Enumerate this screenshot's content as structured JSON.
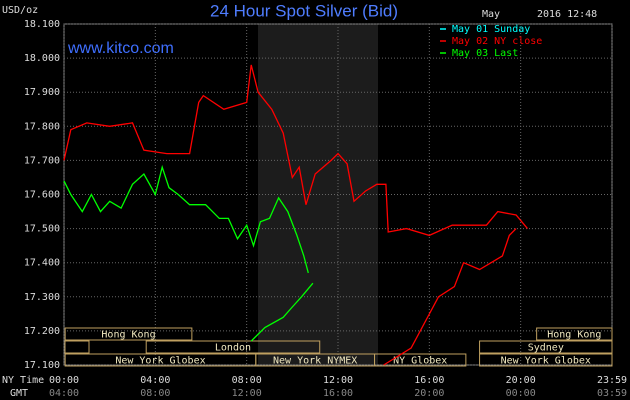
{
  "chart_data": {
    "type": "line",
    "title": "24 Hour Spot Silver (Bid)",
    "y_unit": "USD/oz",
    "watermark": "www.kitco.com",
    "month": "May",
    "timestamp": "2016 12:48",
    "xlim": [
      0,
      24
    ],
    "ylim": [
      17.1,
      18.1
    ],
    "yticks": [
      {
        "value": 17.1,
        "label": "17.100"
      },
      {
        "value": 17.2,
        "label": "17.200"
      },
      {
        "value": 17.3,
        "label": "17.300"
      },
      {
        "value": 17.4,
        "label": "17.400"
      },
      {
        "value": 17.5,
        "label": "17.500"
      },
      {
        "value": 17.6,
        "label": "17.600"
      },
      {
        "value": 17.7,
        "label": "17.700"
      },
      {
        "value": 17.8,
        "label": "17.800"
      },
      {
        "value": 17.9,
        "label": "17.900"
      },
      {
        "value": 18.0,
        "label": "18.000"
      },
      {
        "value": 18.1,
        "label": "18.100"
      }
    ],
    "xticks": [
      {
        "value": 0,
        "label": "00:00"
      },
      {
        "value": 4,
        "label": "04:00"
      },
      {
        "value": 8,
        "label": "08:00"
      },
      {
        "value": 12,
        "label": "12:00"
      },
      {
        "value": 16,
        "label": "16:00"
      },
      {
        "value": 20,
        "label": "20:00"
      },
      {
        "value": 24,
        "label": "23:59"
      }
    ],
    "x_row_label": "NY Time",
    "gmt_row_label": "GMT",
    "gmt_labels": [
      "04:00",
      "08:00",
      "12:00",
      "16:00",
      "20:00",
      "00:00",
      "03:59"
    ],
    "grid": true,
    "series": [
      {
        "name": "May 01 Sunday",
        "color": "#00ffff",
        "x": [],
        "values": []
      },
      {
        "name": "May 02 NY close",
        "color": "#ff0000",
        "x": [
          0,
          0.3,
          1.0,
          2.0,
          3.0,
          3.5,
          4.5,
          5.5,
          5.9,
          6.1,
          7.0,
          8.0,
          8.2,
          8.5,
          9.1,
          9.6,
          10.0,
          10.3,
          10.6,
          11.0,
          11.7,
          12.0,
          12.4,
          12.7,
          13.2,
          13.7,
          14.1,
          14.2,
          15.0,
          16.0,
          17.0,
          18.5,
          19.0,
          19.8,
          20.3,
          null,
          14.0,
          15.2,
          16.4,
          17.1,
          17.5,
          18.2,
          19.2,
          19.5,
          19.8
        ],
        "values": [
          17.7,
          17.79,
          17.81,
          17.8,
          17.81,
          17.73,
          17.72,
          17.72,
          17.87,
          17.89,
          17.85,
          17.87,
          17.98,
          17.9,
          17.85,
          17.78,
          17.65,
          17.68,
          17.57,
          17.66,
          17.7,
          17.72,
          17.69,
          17.58,
          17.61,
          17.63,
          17.63,
          17.49,
          17.5,
          17.48,
          17.51,
          17.51,
          17.55,
          17.54,
          17.5,
          null,
          17.1,
          17.15,
          17.3,
          17.33,
          17.4,
          17.38,
          17.42,
          17.48,
          17.5
        ]
      },
      {
        "name": "May 03 Last",
        "color": "#00ff00",
        "x": [
          0,
          0.3,
          0.8,
          1.2,
          1.6,
          2.0,
          2.5,
          3.0,
          3.5,
          4.0,
          4.3,
          4.6,
          5.0,
          5.5,
          6.2,
          6.8,
          7.2,
          7.6,
          8.0,
          8.3,
          8.6,
          9.0,
          9.4,
          9.8,
          10.2,
          10.5,
          10.7,
          null,
          8.2,
          8.8,
          9.6,
          10.0,
          10.4,
          10.9
        ],
        "values": [
          17.64,
          17.6,
          17.55,
          17.6,
          17.55,
          17.58,
          17.56,
          17.63,
          17.66,
          17.6,
          17.68,
          17.62,
          17.6,
          17.57,
          17.57,
          17.53,
          17.53,
          17.47,
          17.51,
          17.45,
          17.52,
          17.53,
          17.59,
          17.55,
          17.48,
          17.42,
          17.37,
          null,
          17.17,
          17.21,
          17.24,
          17.27,
          17.3,
          17.34
        ]
      }
    ],
    "session_rows": [
      [
        {
          "label": "Hong Kong",
          "start": 0.05,
          "end": 5.6
        },
        {
          "label": "Hong Kong",
          "start": 20.7,
          "end": 24
        }
      ],
      [
        {
          "label": "London",
          "start": 3.6,
          "end": 11.2
        },
        {
          "label": "Sydney",
          "start": 18.2,
          "end": 24
        }
      ],
      [
        {
          "label": "New York Globex",
          "start": 0.05,
          "end": 8.4
        },
        {
          "label": "New York NYMEX",
          "start": 8.4,
          "end": 13.6
        },
        {
          "label": "NY Globex",
          "start": 13.6,
          "end": 17.6
        },
        {
          "label": "New York Globex",
          "start": 18.2,
          "end": 24
        }
      ]
    ]
  }
}
